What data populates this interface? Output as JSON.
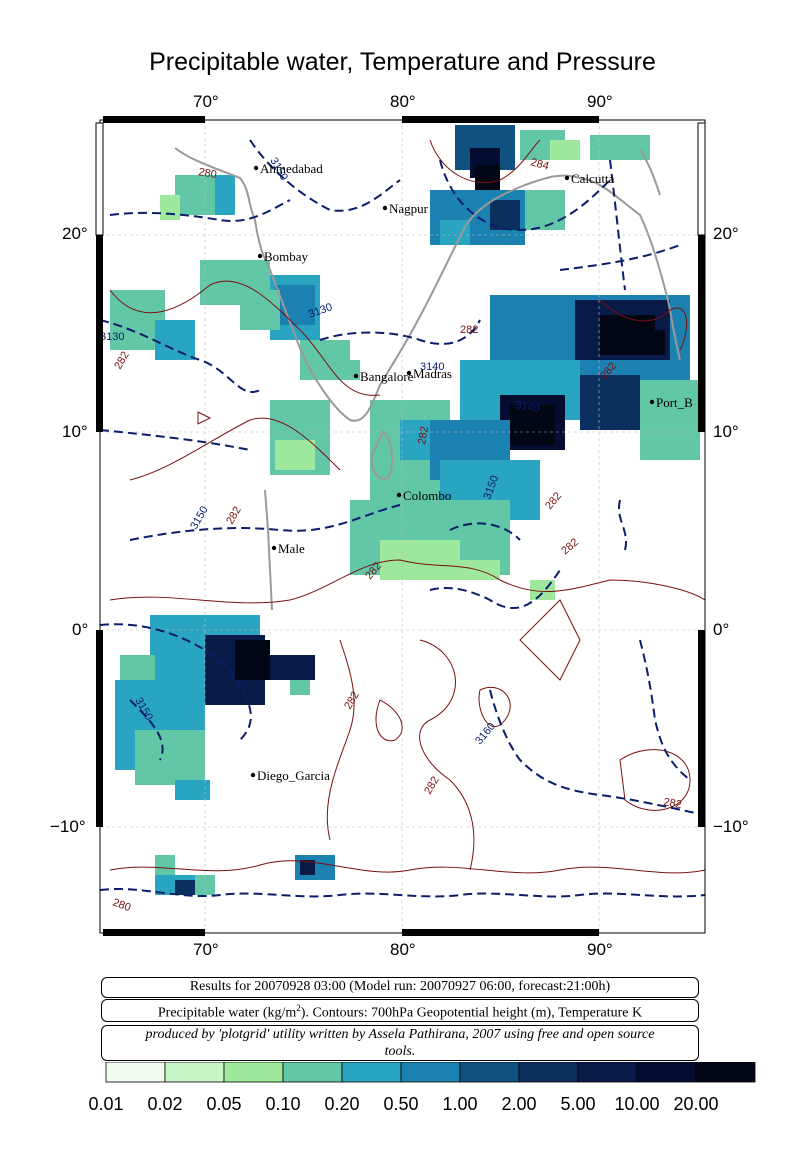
{
  "title": "Precipitable water, Temperature and Pressure",
  "map": {
    "lon_ticks": [
      "70°",
      "80°",
      "90°"
    ],
    "lat_ticks": [
      "20°",
      "10°",
      "0°",
      "−10°"
    ],
    "places": [
      {
        "name": "Ahmedabad"
      },
      {
        "name": "Nagpur"
      },
      {
        "name": "Calcutta"
      },
      {
        "name": "Bombay"
      },
      {
        "name": "Bangalore"
      },
      {
        "name": "Madras"
      },
      {
        "name": "Port_B"
      },
      {
        "name": "Colombo"
      },
      {
        "name": "Male"
      },
      {
        "name": "Diego_Garcia"
      }
    ],
    "contour_labels": [
      "3130",
      "3140",
      "3150",
      "3160",
      "282",
      "284",
      "280"
    ]
  },
  "captions": {
    "line1": "Results for 20070928 03:00 (Model run: 20070927 06:00, forecast:21:00h)",
    "line2_pre": "Precipitable water (kg/m",
    "line2_sup": "2",
    "line2_post": ").  Contours: 700hPa Geopotential height (m), Temperature K",
    "line3": "produced by 'plotgrid' utility written by Assela Pathirana, 2007 using free and open source tools."
  },
  "colorbar": {
    "labels": [
      "0.01",
      "0.02",
      "0.05",
      "0.10",
      "0.20",
      "0.50",
      "1.00",
      "2.00",
      "5.00",
      "10.00",
      "20.00"
    ],
    "colors": [
      "#effbef",
      "#c8f5c8",
      "#9de89d",
      "#62c7a7",
      "#2aa5c1",
      "#1a81b0",
      "#10527f",
      "#0b2f5e",
      "#081a48",
      "#050d33",
      "#020715"
    ]
  }
}
